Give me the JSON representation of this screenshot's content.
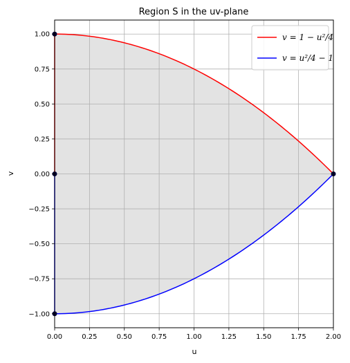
{
  "chart_data": {
    "type": "line",
    "title": "Region S in the uv-plane",
    "xlabel": "u",
    "ylabel": "v",
    "xlim": [
      0,
      2
    ],
    "ylim": [
      -1.1,
      1.1
    ],
    "xticks": [
      0,
      0.25,
      0.5,
      0.75,
      1.0,
      1.25,
      1.5,
      1.75,
      2.0
    ],
    "xtick_labels": [
      "0.00",
      "0.25",
      "0.50",
      "0.75",
      "1.00",
      "1.25",
      "1.50",
      "1.75",
      "2.00"
    ],
    "yticks": [
      -1.0,
      -0.75,
      -0.5,
      -0.25,
      0,
      0.25,
      0.5,
      0.75,
      1.0
    ],
    "ytick_labels": [
      "−1.00",
      "−0.75",
      "−0.50",
      "−0.25",
      "0.00",
      "0.25",
      "0.50",
      "0.75",
      "1.00"
    ],
    "grid": true,
    "legend_position": "top-right",
    "series": [
      {
        "name": "v = 1 − u²/4",
        "color": "#ff0000",
        "x": [
          0,
          0.25,
          0.5,
          0.75,
          1.0,
          1.25,
          1.5,
          1.75,
          2.0
        ],
        "y": [
          1.0,
          0.984,
          0.938,
          0.859,
          0.75,
          0.609,
          0.438,
          0.234,
          0.0
        ]
      },
      {
        "name": "v = u²/4 − 1",
        "color": "#0000ff",
        "x": [
          0,
          0.25,
          0.5,
          0.75,
          1.0,
          1.25,
          1.5,
          1.75,
          2.0
        ],
        "y": [
          -1.0,
          -0.984,
          -0.938,
          -0.859,
          -0.75,
          -0.609,
          -0.438,
          -0.234,
          0.0
        ]
      }
    ],
    "boundary_segments": [
      {
        "color": "#ff0000",
        "x": [
          0,
          0
        ],
        "y": [
          0,
          1
        ]
      },
      {
        "color": "#0000ff",
        "x": [
          0,
          0
        ],
        "y": [
          -1,
          0
        ]
      }
    ],
    "fill_region": {
      "color": "#e3e3e3"
    },
    "points": [
      {
        "x": 0,
        "y": 1.0
      },
      {
        "x": 0,
        "y": 0.0
      },
      {
        "x": 0,
        "y": -1.0
      },
      {
        "x": 2.0,
        "y": 0.0
      }
    ]
  }
}
